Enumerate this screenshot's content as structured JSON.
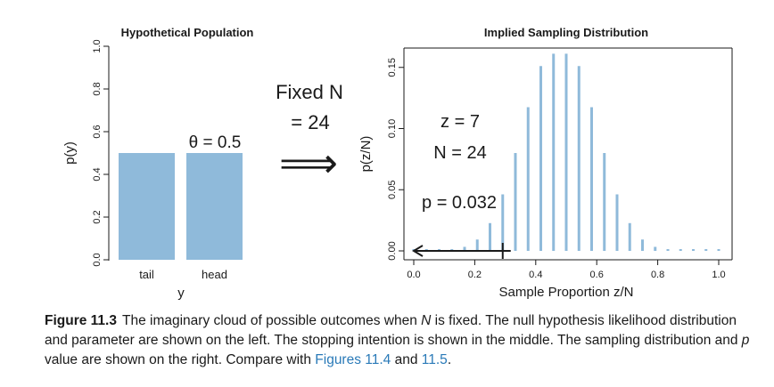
{
  "colors": {
    "bar": "#8fbada",
    "ink": "#1a1a1a",
    "link": "#2a7ab8"
  },
  "middle": {
    "line1": "Fixed N",
    "line2": "= 24",
    "arrow": "⟹"
  },
  "chart_data": [
    {
      "type": "bar",
      "title": "Hypothetical Population",
      "xlabel": "y",
      "ylabel": "p(y)",
      "categories": [
        "tail",
        "head"
      ],
      "values": [
        0.5,
        0.5
      ],
      "ylim": [
        0,
        1
      ],
      "yticks": [
        0,
        0.2,
        0.4,
        0.6,
        0.8,
        1
      ],
      "ytick_labels": [
        "0.0",
        "0.2",
        "0.4",
        "0.6",
        "0.8",
        "1.0"
      ],
      "annotation": "θ = 0.5",
      "grid": false
    },
    {
      "type": "bar",
      "title": "Implied Sampling Distribution",
      "xlabel": "Sample Proportion z/N",
      "ylabel": "p(z/N)",
      "x": [
        0,
        0.0417,
        0.0833,
        0.125,
        0.1667,
        0.2083,
        0.25,
        0.2917,
        0.3333,
        0.375,
        0.4167,
        0.4583,
        0.5,
        0.5417,
        0.5833,
        0.625,
        0.6667,
        0.7083,
        0.75,
        0.7917,
        0.8333,
        0.875,
        0.9167,
        0.9583,
        1
      ],
      "values": [
        0.0,
        0.0,
        0.0002,
        0.0011,
        0.0033,
        0.0093,
        0.0227,
        0.0462,
        0.08,
        0.1175,
        0.1511,
        0.1612,
        0.1612,
        0.1511,
        0.1175,
        0.08,
        0.0462,
        0.0227,
        0.0093,
        0.0033,
        0.0011,
        0.0002,
        0.0,
        0.0,
        0.0
      ],
      "xlim": [
        0,
        1
      ],
      "ylim": [
        0,
        0.16
      ],
      "xticks": [
        0,
        0.2,
        0.4,
        0.6,
        0.8,
        1
      ],
      "xtick_labels": [
        "0.0",
        "0.2",
        "0.4",
        "0.6",
        "0.8",
        "1.0"
      ],
      "yticks": [
        0,
        0.05,
        0.1,
        0.15
      ],
      "ytick_labels": [
        "0.00",
        "0.05",
        "0.10",
        "0.15"
      ],
      "annotations": [
        "z = 7",
        "N = 24",
        "p = 0.032"
      ],
      "observed_proportion": 0.2917,
      "grid": false
    }
  ],
  "caption": {
    "figure_number": "Figure 11.3",
    "text_1": "The imaginary cloud of possible outcomes when ",
    "N": "N",
    "text_2": " is fixed. The null hypothesis likelihood distribution and parameter are shown on the left. The stopping intention is shown in the middle. The sampling distribution and ",
    "p": "p",
    "text_3": " value are shown on the right. Compare with ",
    "link_1": "Figures 11.4",
    "text_4": " and ",
    "link_2": "11.5",
    "text_5": "."
  }
}
